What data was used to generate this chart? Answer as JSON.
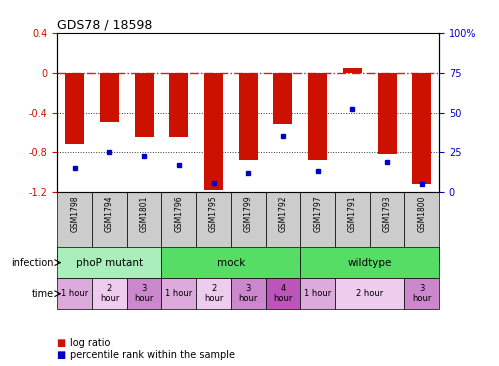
{
  "title": "GDS78 / 18598",
  "samples": [
    "GSM1798",
    "GSM1794",
    "GSM1801",
    "GSM1796",
    "GSM1795",
    "GSM1799",
    "GSM1792",
    "GSM1797",
    "GSM1791",
    "GSM1793",
    "GSM1800"
  ],
  "log_ratio": [
    -0.72,
    -0.5,
    -0.65,
    -0.65,
    -1.18,
    -0.88,
    -0.52,
    -0.88,
    0.05,
    -0.82,
    -1.12
  ],
  "percentile": [
    15,
    25,
    23,
    17,
    6,
    12,
    35,
    13,
    52,
    19,
    5
  ],
  "ylim_left": [
    -1.2,
    0.4
  ],
  "ylim_right": [
    0,
    100
  ],
  "yticks_left": [
    -1.2,
    -0.8,
    -0.4,
    0.0,
    0.4
  ],
  "ytick_labels_left": [
    "-1.2",
    "-0.8",
    "-0.4",
    "0",
    "0.4"
  ],
  "yticks_right": [
    0,
    25,
    50,
    75,
    100
  ],
  "ytick_labels_right": [
    "0",
    "25",
    "50",
    "75",
    "100%"
  ],
  "bar_color": "#cc1100",
  "dot_color": "#0000cc",
  "hline_color": "#cc2222",
  "grid_color": "#333333",
  "infection_groups": [
    {
      "label": "phoP mutant",
      "start": 0,
      "end": 3,
      "color": "#aaeebb"
    },
    {
      "label": "mock",
      "start": 3,
      "end": 7,
      "color": "#55dd66"
    },
    {
      "label": "wildtype",
      "start": 7,
      "end": 11,
      "color": "#55dd66"
    }
  ],
  "time_spans": [
    {
      "label": "1 hour",
      "start": 0,
      "end": 1,
      "color": "#ddaadd"
    },
    {
      "label": "2\nhour",
      "start": 1,
      "end": 2,
      "color": "#eeccee"
    },
    {
      "label": "3\nhour",
      "start": 2,
      "end": 3,
      "color": "#cc88cc"
    },
    {
      "label": "1 hour",
      "start": 3,
      "end": 4,
      "color": "#ddaadd"
    },
    {
      "label": "2\nhour",
      "start": 4,
      "end": 5,
      "color": "#eeccee"
    },
    {
      "label": "3\nhour",
      "start": 5,
      "end": 6,
      "color": "#cc88cc"
    },
    {
      "label": "4\nhour",
      "start": 6,
      "end": 7,
      "color": "#bb55bb"
    },
    {
      "label": "1 hour",
      "start": 7,
      "end": 8,
      "color": "#ddaadd"
    },
    {
      "label": "2 hour",
      "start": 8,
      "end": 10,
      "color": "#eeccee"
    },
    {
      "label": "3\nhour",
      "start": 10,
      "end": 11,
      "color": "#cc88cc"
    }
  ],
  "legend_items": [
    {
      "label": "log ratio",
      "color": "#cc1100"
    },
    {
      "label": "percentile rank within the sample",
      "color": "#0000cc"
    }
  ],
  "infection_row_label": "infection",
  "time_row_label": "time",
  "sample_box_color": "#cccccc",
  "background_color": "#ffffff"
}
